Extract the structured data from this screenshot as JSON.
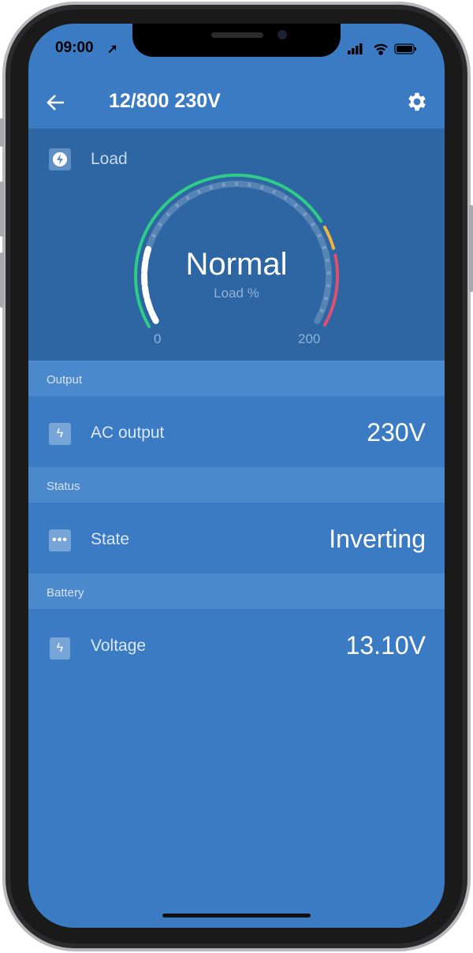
{
  "status_bar": {
    "time": "09:00"
  },
  "app_bar": {
    "title": "12/800 230V"
  },
  "load": {
    "label": "Load",
    "state": "Normal",
    "unit_label": "Load %",
    "min_label": "0",
    "max_label": "200",
    "fill_fraction": 0.22,
    "colors": {
      "green": "#2ecc87",
      "yellow": "#f0b43c",
      "red": "#e0506e"
    }
  },
  "sections": [
    {
      "header": "Output",
      "label": "AC output",
      "value": "230V",
      "icon": "lightning-icon"
    },
    {
      "header": "Status",
      "label": "State",
      "value": "Inverting",
      "icon": "more-dots-icon"
    },
    {
      "header": "Battery",
      "label": "Voltage",
      "value": "13.10V",
      "icon": "battery-icon"
    }
  ],
  "colors": {
    "primary": "#3a7bc4",
    "panel": "#2e66a3",
    "section_header": "#4b88cc"
  }
}
